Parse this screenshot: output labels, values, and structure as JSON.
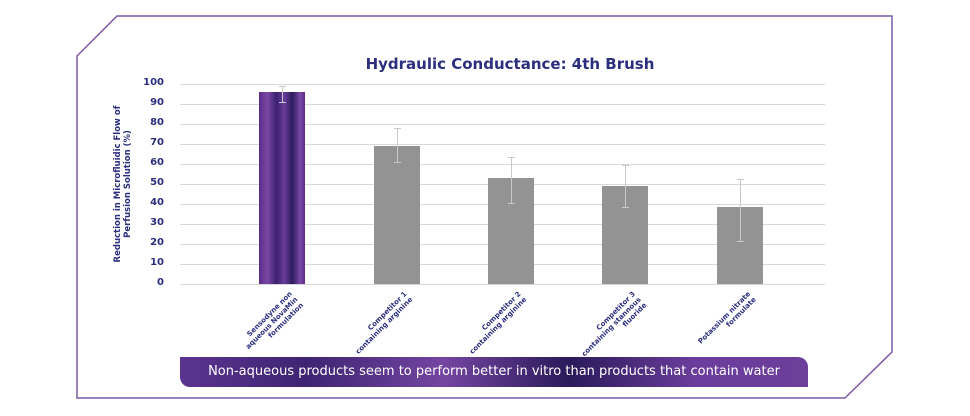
{
  "chart_data": {
    "type": "bar",
    "title": "Hydraulic Conductance: 4th Brush",
    "xlabel": "",
    "ylabel": "Reduction in Microfluidic Flow of Perfusion Solution (%)",
    "ylim": [
      0,
      100
    ],
    "yticks": [
      "0",
      "10",
      "20",
      "30",
      "40",
      "50",
      "60",
      "70",
      "80",
      "90",
      "100"
    ],
    "grid": true,
    "legend": null,
    "categories": [
      "Sensodyne non aqueous NovaMin formulation",
      "Competitor 1 containing arginine",
      "Competitor 2 containing arginine",
      "Competitor 3 containing stannous fluoride",
      "Potassium nitrate formulate"
    ],
    "values": [
      96,
      69,
      53,
      49,
      38.5
    ],
    "error_bars": [
      {
        "low": 91,
        "high": 99
      },
      {
        "low": 61,
        "high": 78
      },
      {
        "low": 40.5,
        "high": 63.5
      },
      {
        "low": 38.5,
        "high": 59.5
      },
      {
        "low": 21.5,
        "high": 52.5
      }
    ],
    "bar_colors": [
      "#5a2c86",
      "#939393",
      "#939393",
      "#939393",
      "#939393"
    ]
  },
  "x_labels": [
    [
      "Sensodyne non",
      "aqueous NovaMin",
      "formulation"
    ],
    [
      "Competitor 1",
      "containing arginine"
    ],
    [
      "Competitor 2",
      "containing arginine"
    ],
    [
      "Competitor 3",
      "containing stannous",
      "fluoride"
    ],
    [
      "Potassium nitrate",
      "formulate"
    ]
  ],
  "banner": {
    "text": "Non-aqueous products seem to perform better in vitro than products that contain water"
  },
  "colors": {
    "title": "#2b2f7d",
    "frame": "#7a5aa8",
    "banner": "#5c3490",
    "bar_gray": "#939393"
  }
}
